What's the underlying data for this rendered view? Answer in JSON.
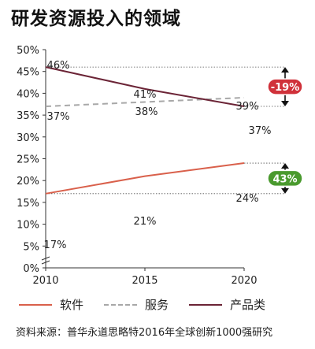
{
  "title": "研发资源投入的领域",
  "source": "资料来源：普华永道思略特2016年全球创新1000强研究",
  "chart_data": {
    "type": "line",
    "x": [
      2010,
      2015,
      2020
    ],
    "xlim": [
      2010,
      2020
    ],
    "ylim": [
      0,
      50
    ],
    "yticks": [
      "0%",
      "5%",
      "10%",
      "15%",
      "20%",
      "25%",
      "30%",
      "35%",
      "40%",
      "45%",
      "50%"
    ],
    "xticks": [
      "2010",
      "2015",
      "2020"
    ],
    "series": [
      {
        "name": "软件",
        "values": [
          17,
          21,
          24
        ],
        "labels": [
          "17%",
          "21%",
          "24%"
        ],
        "color": "#d9604b",
        "style": "solid"
      },
      {
        "name": "服务",
        "values": [
          37,
          38,
          39
        ],
        "labels": [
          "37%",
          "38%",
          "39%"
        ],
        "color": "#a8a8a8",
        "style": "dashed"
      },
      {
        "name": "产品类",
        "values": [
          46,
          41,
          37
        ],
        "labels": [
          "46%",
          "41%",
          "37%"
        ],
        "color": "#6b2436",
        "style": "solid"
      }
    ],
    "annotations": [
      {
        "label": "-19%",
        "color": "#d0313a",
        "from_value": 46,
        "to_value": 37
      },
      {
        "label": "43%",
        "color": "#4a9a2e",
        "from_value": 24,
        "to_value": 17
      }
    ]
  }
}
